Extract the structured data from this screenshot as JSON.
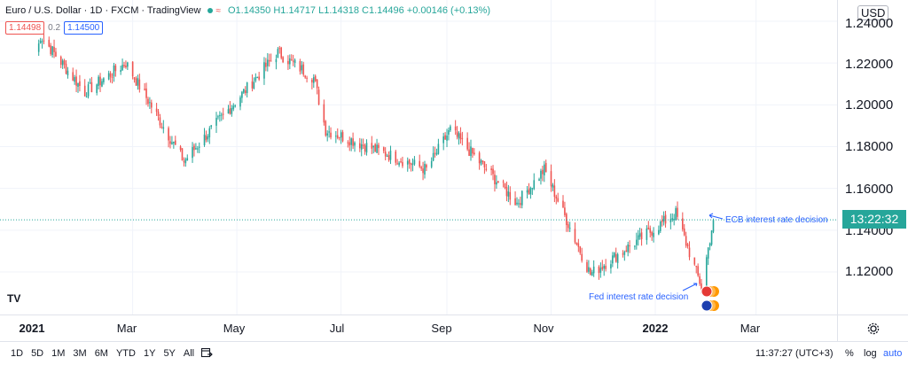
{
  "header": {
    "symbol_title": "Euro / U.S. Dollar · 1D · FXCM · TradingView",
    "eq_icon": "≈",
    "ohlc": "O1.14350 H1.14717 L1.14318 C1.14496 +0.00146 (+0.13%)",
    "bid": "1.14498",
    "spread": "0.2",
    "ask": "1.14500"
  },
  "price_axis": {
    "currency": "USD",
    "labels": [
      "1.24000",
      "1.22000",
      "1.20000",
      "1.18000",
      "1.16000",
      "1.14000",
      "1.12000"
    ],
    "countdown": "13:22:32"
  },
  "time_axis": {
    "labels": [
      "2021",
      "Mar",
      "May",
      "Jul",
      "Sep",
      "Nov",
      "2022",
      "Mar"
    ]
  },
  "annotations": {
    "ecb": "ECB interest rate decision",
    "fed": "Fed interest rate decision"
  },
  "bottom_bar": {
    "ranges": [
      "1D",
      "5D",
      "1M",
      "3M",
      "6M",
      "YTD",
      "1Y",
      "5Y",
      "All"
    ],
    "clock": "11:37:27 (UTC+3)",
    "percent": "%",
    "log": "log",
    "auto": "auto"
  },
  "logo": "TV",
  "colors": {
    "up": "#26a69a",
    "down": "#ef5350",
    "accent": "#2962ff",
    "grid": "#f0f3fa"
  },
  "chart_data": {
    "type": "candlestick",
    "symbol": "EUR/USD",
    "interval": "1D",
    "ylim": [
      1.1,
      1.245
    ],
    "key_points": [
      {
        "date": "2021-01-04",
        "close": 1.225
      },
      {
        "date": "2021-01-06",
        "close": 1.233
      },
      {
        "date": "2021-02-01",
        "close": 1.206
      },
      {
        "date": "2021-02-25",
        "close": 1.22
      },
      {
        "date": "2021-03-31",
        "close": 1.173
      },
      {
        "date": "2021-05-25",
        "close": 1.225
      },
      {
        "date": "2021-06-15",
        "close": 1.213
      },
      {
        "date": "2021-06-22",
        "close": 1.188
      },
      {
        "date": "2021-08-20",
        "close": 1.169
      },
      {
        "date": "2021-09-03",
        "close": 1.188
      },
      {
        "date": "2021-10-12",
        "close": 1.153
      },
      {
        "date": "2021-10-28",
        "close": 1.169
      },
      {
        "date": "2021-11-24",
        "close": 1.119
      },
      {
        "date": "2022-01-13",
        "close": 1.148
      },
      {
        "date": "2022-01-28",
        "close": 1.113
      },
      {
        "date": "2022-02-04",
        "close": 1.145
      }
    ],
    "last_close": 1.14496,
    "grid": true
  }
}
